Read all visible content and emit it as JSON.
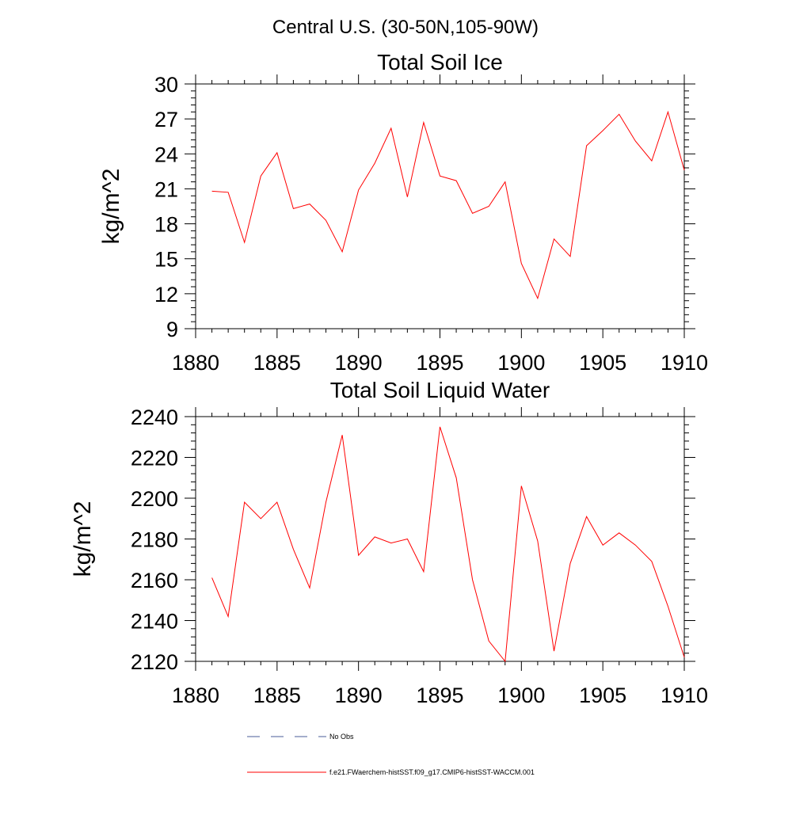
{
  "figure": {
    "title": "Central U.S. (30-50N,105-90W)"
  },
  "chart_data": [
    {
      "type": "line",
      "title": "Total Soil Ice",
      "xlabel": "",
      "ylabel": "kg/m^2",
      "xlim": [
        1880,
        1910
      ],
      "ylim": [
        9,
        30
      ],
      "xticks": [
        1880,
        1885,
        1890,
        1895,
        1900,
        1905,
        1910
      ],
      "yticks": [
        9,
        12,
        15,
        18,
        21,
        24,
        27,
        30
      ],
      "series": [
        {
          "name": "f.e21.FWaerchem-histSST.f09_g17.CMIP6-histSST-WACCM.001",
          "color": "#ff0000",
          "x": [
            1881,
            1882,
            1883,
            1884,
            1885,
            1886,
            1887,
            1888,
            1889,
            1890,
            1891,
            1892,
            1893,
            1894,
            1895,
            1896,
            1897,
            1898,
            1899,
            1900,
            1901,
            1902,
            1903,
            1904,
            1905,
            1906,
            1907,
            1908,
            1909,
            1910
          ],
          "y": [
            20.8,
            20.7,
            16.4,
            22.1,
            24.1,
            19.3,
            19.7,
            18.3,
            15.6,
            20.9,
            23.2,
            26.2,
            20.3,
            26.7,
            22.1,
            21.7,
            18.9,
            19.5,
            21.6,
            14.6,
            11.6,
            16.7,
            15.2,
            24.7,
            26.0,
            27.4,
            25.1,
            23.4,
            27.6,
            22.6
          ]
        }
      ],
      "grid": false
    },
    {
      "type": "line",
      "title": "Total Soil Liquid Water",
      "xlabel": "",
      "ylabel": "kg/m^2",
      "xlim": [
        1880,
        1910
      ],
      "ylim": [
        2120,
        2240
      ],
      "xticks": [
        1880,
        1885,
        1890,
        1895,
        1900,
        1905,
        1910
      ],
      "yticks": [
        2120,
        2140,
        2160,
        2180,
        2200,
        2220,
        2240
      ],
      "series": [
        {
          "name": "f.e21.FWaerchem-histSST.f09_g17.CMIP6-histSST-WACCM.001",
          "color": "#ff0000",
          "x": [
            1881,
            1882,
            1883,
            1884,
            1885,
            1886,
            1887,
            1888,
            1889,
            1890,
            1891,
            1892,
            1893,
            1894,
            1895,
            1896,
            1897,
            1898,
            1899,
            1900,
            1901,
            1902,
            1903,
            1904,
            1905,
            1906,
            1907,
            1908,
            1909,
            1910
          ],
          "y": [
            2161,
            2142,
            2198,
            2190,
            2198,
            2175,
            2156,
            2198,
            2231,
            2172,
            2181,
            2178,
            2180,
            2164,
            2235,
            2210,
            2160,
            2130,
            2120,
            2206,
            2179,
            2125,
            2168,
            2191,
            2177,
            2183,
            2177,
            2169,
            2147,
            2122
          ]
        }
      ],
      "grid": false
    }
  ],
  "legend": {
    "placement": "bottom",
    "items": [
      {
        "label": "No Obs",
        "color": "#4a5d9a",
        "style": "dashed"
      },
      {
        "label": "f.e21.FWaerchem-histSST.f09_g17.CMIP6-histSST-WACCM.001",
        "color": "#ff0000",
        "style": "solid"
      }
    ]
  }
}
